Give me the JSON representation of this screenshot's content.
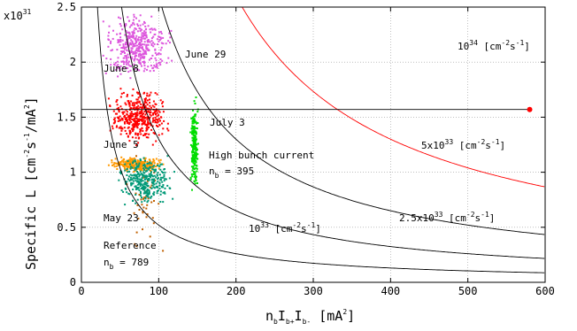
{
  "chart_data": {
    "type": "scatter",
    "xlabel": {
      "main": "n",
      "sub1": "b",
      "mid": "I",
      "sub2": "b+",
      "mid2": "I",
      "sub3": "b-",
      "tail": "  [mA",
      "sup": "2",
      "end": "]"
    },
    "ylabel": {
      "main": "Specific L  [cm",
      "sup1": "-2",
      "mid": "s",
      "sup2": "-1",
      "mid2": "/mA",
      "sup3": "2",
      "end": "]"
    },
    "y_multiplier": {
      "base": "x10",
      "exp": "31"
    },
    "xlim": [
      0,
      600
    ],
    "ylim": [
      0,
      2.5
    ],
    "x_ticks": [
      "0",
      "100",
      "200",
      "300",
      "400",
      "500",
      "600"
    ],
    "y_ticks": [
      "0",
      "0.5",
      "1",
      "1.5",
      "2",
      "2.5"
    ],
    "grid": true,
    "iso_luminosity_curves": [
      {
        "constant": 1e+33,
        "color": "#000000",
        "label": {
          "pre": "10",
          "sup": "33",
          "post": "  [cm",
          "sup2": "-2",
          "mid": "s",
          "sup3": "-1",
          "end": "]"
        }
      },
      {
        "constant": 2.5e+33,
        "color": "#000000",
        "label": {
          "pre": "2.5x10",
          "sup": "33",
          "post": " [cm",
          "sup2": "-2",
          "mid": "s",
          "sup3": "-1",
          "end": "]"
        }
      },
      {
        "constant": 5e+33,
        "color": "#000000",
        "label": {
          "pre": "5x10",
          "sup": "33",
          "post": " [cm",
          "sup2": "-2",
          "mid": "s",
          "sup3": "-1",
          "end": "]"
        }
      },
      {
        "constant": 1e+34,
        "color": "#ff0000",
        "label": {
          "pre": "10",
          "sup": "34",
          "post": " [cm",
          "sup2": "-2",
          "mid": "s",
          "sup3": "-1",
          "end": "]"
        }
      }
    ],
    "target_line": {
      "y": 1.57,
      "x_start": 0,
      "x_end": 580,
      "color": "#000000"
    },
    "target_point": {
      "x": 580,
      "y": 1.57,
      "color": "#ff0000"
    },
    "series": [
      {
        "name": "May 23",
        "color": "#c06000",
        "x_range": [
          45,
          120
        ],
        "y_range": [
          0.1,
          1.3
        ],
        "count": 45
      },
      {
        "name": "June 5",
        "color": "#ff9900",
        "x_range": [
          30,
          110
        ],
        "y_range": [
          1.0,
          1.15
        ],
        "count": 260
      },
      {
        "name": "June 8",
        "color": "#ff0000",
        "x_range": [
          28,
          120
        ],
        "y_range": [
          1.2,
          1.8
        ],
        "count": 420
      },
      {
        "name": "June 29",
        "color": "#dd55dd",
        "x_range": [
          20,
          125
        ],
        "y_range": [
          1.8,
          2.5
        ],
        "count": 420
      },
      {
        "name": "July 3",
        "color": "#00dd00",
        "x_range": [
          140,
          152
        ],
        "y_range": [
          0.7,
          1.75
        ],
        "count": 220
      },
      {
        "name": "",
        "color": "#009977",
        "x_range": [
          40,
          128
        ],
        "y_range": [
          0.65,
          1.2
        ],
        "count": 320
      }
    ],
    "annotations": {
      "june29": "June 29",
      "june8": "June 8",
      "july3": "July 3",
      "june5": "June 5",
      "may23": "May 23",
      "high_bunch": "High bunch current",
      "nb395": {
        "pre": "n",
        "sub": "b",
        "post": " = 395"
      },
      "reference": "Reference",
      "nb789": {
        "pre": "n",
        "sub": "b",
        "post": " = 789"
      }
    }
  }
}
